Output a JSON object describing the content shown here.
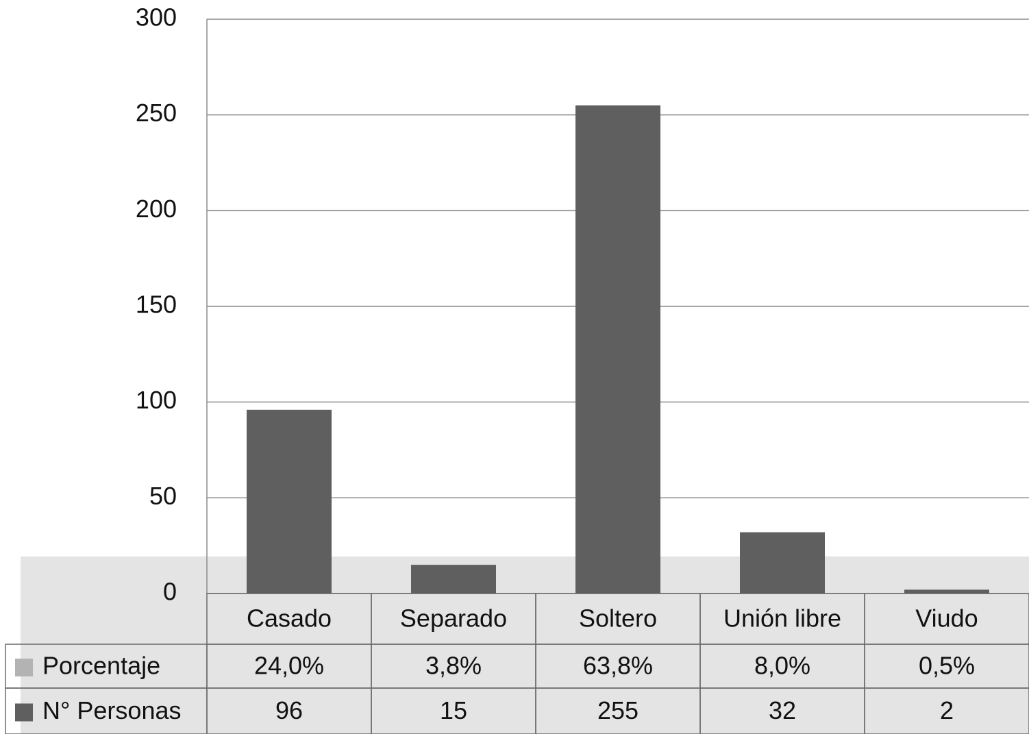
{
  "chart_data": {
    "type": "bar",
    "categories": [
      "Casado",
      "Separado",
      "Soltero",
      "Unión libre",
      "Viudo"
    ],
    "series": [
      {
        "name": "Porcentaje",
        "color": "#b3b3b3",
        "values": [
          0.24,
          0.038,
          0.638,
          0.08,
          0.005
        ],
        "value_labels": [
          "24,0%",
          "3,8%",
          "63,8%",
          "8,0%",
          "0,5%"
        ]
      },
      {
        "name": "N° Personas",
        "color": "#5f5f5f",
        "values": [
          96,
          15,
          255,
          32,
          2
        ]
      }
    ],
    "ylim": [
      0,
      300
    ],
    "yticks": [
      0,
      50,
      100,
      150,
      200,
      250,
      300
    ],
    "grid": true,
    "data_table": true
  }
}
